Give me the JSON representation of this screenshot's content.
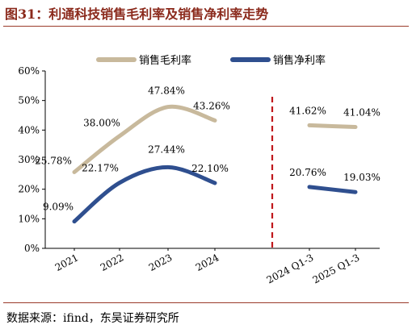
{
  "header": {
    "title": "图31：利通科技销售毛利率及销售净利率走势"
  },
  "footer": {
    "source": "数据来源：ifind，东吴证券研究所"
  },
  "chart_data": {
    "type": "line",
    "categories": [
      "2021",
      "2022",
      "2023",
      "2024",
      "2024 Q1-3",
      "2025 Q1-3"
    ],
    "ylim": [
      0,
      60
    ],
    "yticks": [
      "0%",
      "10%",
      "20%",
      "30%",
      "40%",
      "50%",
      "60%"
    ],
    "divider_after_index": 3,
    "grid": false,
    "legend_position": "top",
    "series": [
      {
        "name": "销售毛利率",
        "color": "#c8b99c",
        "annual": [
          25.78,
          38.0,
          47.84,
          43.26
        ],
        "annual_labels": [
          "25.78%",
          "38.00%",
          "47.84%",
          "43.26%"
        ],
        "quarterly": [
          41.62,
          41.04
        ],
        "quarterly_labels": [
          "41.62%",
          "41.04%"
        ]
      },
      {
        "name": "销售净利率",
        "color": "#2f4f8f",
        "annual": [
          9.09,
          22.17,
          27.44,
          22.1
        ],
        "annual_labels": [
          "9.09%",
          "22.17%",
          "27.44%",
          "22.10%"
        ],
        "quarterly": [
          20.76,
          19.03
        ],
        "quarterly_labels": [
          "20.76%",
          "19.03%"
        ]
      }
    ]
  }
}
